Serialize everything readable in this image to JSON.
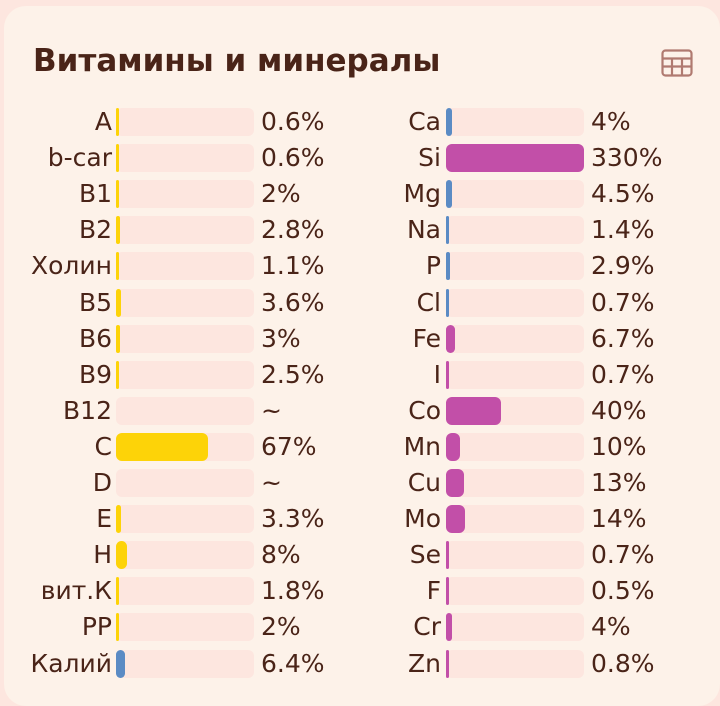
{
  "header": {
    "title": "Витамины и минералы",
    "table_icon": "table-grid-icon"
  },
  "colors": {
    "vitamin": "#fdd308",
    "mineral_blue": "#5b8bc4",
    "mineral_magenta": "#c24fa8",
    "track": "#fde6df",
    "text": "#4a2418"
  },
  "vitamins": [
    {
      "name": "A",
      "value": "0.6%",
      "percent": 0.6,
      "color": "#fdd308"
    },
    {
      "name": "b-car",
      "value": "0.6%",
      "percent": 0.6,
      "color": "#fdd308"
    },
    {
      "name": "B1",
      "value": "2%",
      "percent": 2,
      "color": "#fdd308"
    },
    {
      "name": "B2",
      "value": "2.8%",
      "percent": 2.8,
      "color": "#fdd308"
    },
    {
      "name": "Холин",
      "value": "1.1%",
      "percent": 1.1,
      "color": "#fdd308"
    },
    {
      "name": "B5",
      "value": "3.6%",
      "percent": 3.6,
      "color": "#fdd308"
    },
    {
      "name": "B6",
      "value": "3%",
      "percent": 3,
      "color": "#fdd308"
    },
    {
      "name": "B9",
      "value": "2.5%",
      "percent": 2.5,
      "color": "#fdd308"
    },
    {
      "name": "B12",
      "value": "~",
      "percent": 0,
      "color": "#fdd308"
    },
    {
      "name": "C",
      "value": "67%",
      "percent": 67,
      "color": "#fdd308"
    },
    {
      "name": "D",
      "value": "~",
      "percent": 0,
      "color": "#fdd308"
    },
    {
      "name": "E",
      "value": "3.3%",
      "percent": 3.3,
      "color": "#fdd308"
    },
    {
      "name": "H",
      "value": "8%",
      "percent": 8,
      "color": "#fdd308"
    },
    {
      "name": "вит.К",
      "value": "1.8%",
      "percent": 1.8,
      "color": "#fdd308"
    },
    {
      "name": "PP",
      "value": "2%",
      "percent": 2,
      "color": "#fdd308"
    },
    {
      "name": "Калий",
      "value": "6.4%",
      "percent": 6.4,
      "color": "#5b8bc4"
    }
  ],
  "minerals": [
    {
      "name": "Ca",
      "value": "4%",
      "percent": 4,
      "color": "#5b8bc4"
    },
    {
      "name": "Si",
      "value": "330%",
      "percent": 330,
      "color": "#c24fa8"
    },
    {
      "name": "Mg",
      "value": "4.5%",
      "percent": 4.5,
      "color": "#5b8bc4"
    },
    {
      "name": "Na",
      "value": "1.4%",
      "percent": 1.4,
      "color": "#5b8bc4"
    },
    {
      "name": "P",
      "value": "2.9%",
      "percent": 2.9,
      "color": "#5b8bc4"
    },
    {
      "name": "Cl",
      "value": "0.7%",
      "percent": 0.7,
      "color": "#5b8bc4"
    },
    {
      "name": "Fe",
      "value": "6.7%",
      "percent": 6.7,
      "color": "#c24fa8"
    },
    {
      "name": "I",
      "value": "0.7%",
      "percent": 0.7,
      "color": "#c24fa8"
    },
    {
      "name": "Co",
      "value": "40%",
      "percent": 40,
      "color": "#c24fa8"
    },
    {
      "name": "Mn",
      "value": "10%",
      "percent": 10,
      "color": "#c24fa8"
    },
    {
      "name": "Cu",
      "value": "13%",
      "percent": 13,
      "color": "#c24fa8"
    },
    {
      "name": "Mo",
      "value": "14%",
      "percent": 14,
      "color": "#c24fa8"
    },
    {
      "name": "Se",
      "value": "0.7%",
      "percent": 0.7,
      "color": "#c24fa8"
    },
    {
      "name": "F",
      "value": "0.5%",
      "percent": 0.5,
      "color": "#c24fa8"
    },
    {
      "name": "Cr",
      "value": "4%",
      "percent": 4,
      "color": "#c24fa8"
    },
    {
      "name": "Zn",
      "value": "0.8%",
      "percent": 0.8,
      "color": "#c24fa8"
    }
  ]
}
